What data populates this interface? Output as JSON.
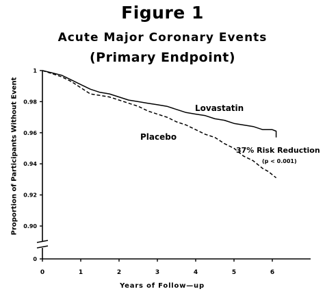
{
  "figure": {
    "label": "Figure 1",
    "title": "Acute Major Coronary Events",
    "subtitle": "(Primary Endpoint)"
  },
  "chart_data": {
    "type": "line",
    "xlabel": "Years of Follow—up",
    "ylabel": "Proportion of Participants Without Event",
    "xlim": [
      0,
      7
    ],
    "ylim": [
      0.9,
      1.0
    ],
    "y_axis_break": true,
    "x_ticks": [
      0,
      1,
      2,
      3,
      4,
      5,
      6
    ],
    "x_tick_labels": [
      "0",
      "1",
      "2",
      "3",
      "4",
      "5",
      "6"
    ],
    "y_ticks": [
      1.0,
      0.98,
      0.96,
      0.94,
      0.92,
      0.9
    ],
    "y_tick_labels": [
      "1",
      "0.98",
      "0.96",
      "0.94",
      "0.92",
      "0.90"
    ],
    "y_zero_label": "0",
    "grid": false,
    "series": [
      {
        "name": "Lovastatin",
        "style": "solid",
        "color": "#000000",
        "x": [
          0,
          0.25,
          0.5,
          0.75,
          1.0,
          1.25,
          1.5,
          1.75,
          2.0,
          2.25,
          2.5,
          2.75,
          3.0,
          3.25,
          3.5,
          3.75,
          4.0,
          4.25,
          4.5,
          4.75,
          5.0,
          5.25,
          5.5,
          5.75,
          6.0,
          6.1,
          6.1
        ],
        "values": [
          1.0,
          0.9985,
          0.997,
          0.994,
          0.991,
          0.988,
          0.986,
          0.985,
          0.983,
          0.981,
          0.98,
          0.979,
          0.978,
          0.977,
          0.975,
          0.973,
          0.972,
          0.971,
          0.969,
          0.968,
          0.966,
          0.965,
          0.964,
          0.962,
          0.962,
          0.961,
          0.957
        ]
      },
      {
        "name": "Placebo",
        "style": "dashed",
        "color": "#000000",
        "x": [
          0,
          0.25,
          0.5,
          0.75,
          1.0,
          1.25,
          1.5,
          1.75,
          2.0,
          2.25,
          2.5,
          2.75,
          3.0,
          3.25,
          3.5,
          3.75,
          4.0,
          4.25,
          4.5,
          4.75,
          5.0,
          5.25,
          5.5,
          5.75,
          5.9,
          6.0,
          6.1
        ],
        "values": [
          1.0,
          0.998,
          0.996,
          0.993,
          0.989,
          0.985,
          0.984,
          0.983,
          0.981,
          0.979,
          0.977,
          0.974,
          0.972,
          0.97,
          0.967,
          0.965,
          0.962,
          0.959,
          0.957,
          0.953,
          0.95,
          0.945,
          0.942,
          0.937,
          0.935,
          0.933,
          0.931
        ]
      }
    ],
    "annotations": [
      "37% Risk Reduction",
      "(p < 0.001)"
    ]
  }
}
